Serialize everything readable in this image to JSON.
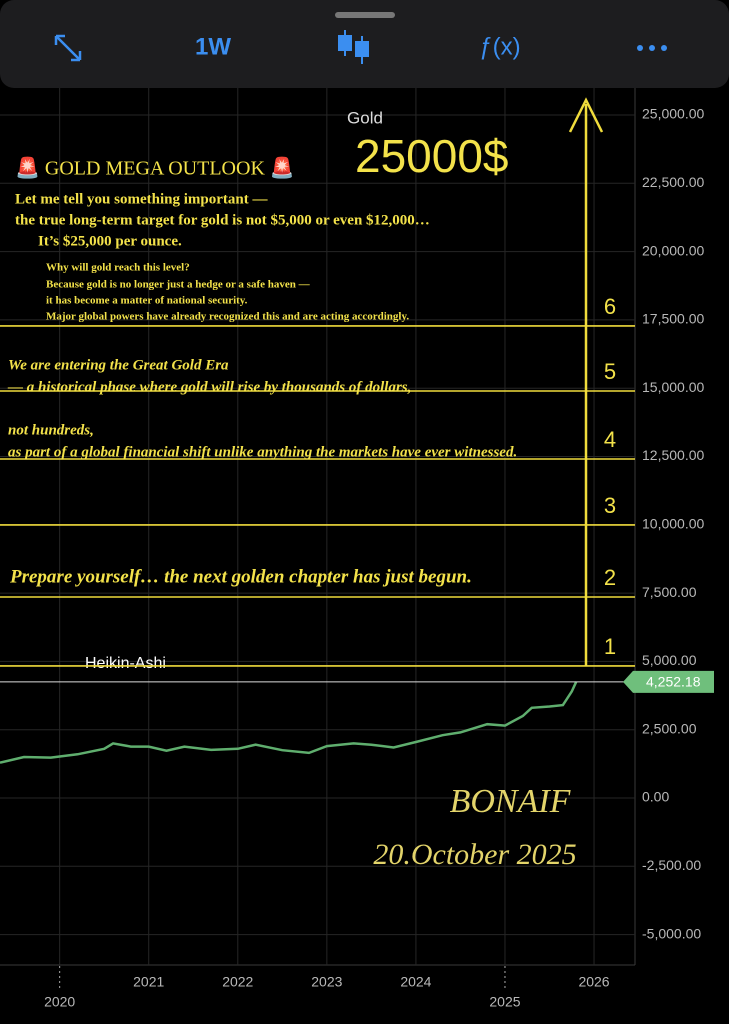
{
  "toolbar": {
    "interval": "1W",
    "function": "ƒ(x)"
  },
  "chart_data": {
    "type": "line",
    "title": "Gold",
    "series_label": "Heikin-Ashi",
    "color": "#5fae6e",
    "x": [
      2019.33,
      2019.6,
      2019.9,
      2020.2,
      2020.5,
      2020.6,
      2020.8,
      2021.0,
      2021.2,
      2021.4,
      2021.7,
      2022.0,
      2022.2,
      2022.5,
      2022.8,
      2023.0,
      2023.3,
      2023.5,
      2023.75,
      2024.0,
      2024.3,
      2024.5,
      2024.8,
      2025.0,
      2025.2,
      2025.3,
      2025.5,
      2025.65,
      2025.75,
      2025.8
    ],
    "values": [
      1290,
      1500,
      1480,
      1600,
      1800,
      2000,
      1880,
      1880,
      1730,
      1880,
      1760,
      1800,
      1950,
      1750,
      1650,
      1900,
      2000,
      1950,
      1850,
      2050,
      2300,
      2400,
      2700,
      2650,
      3000,
      3300,
      3350,
      3400,
      3900,
      4252.18
    ],
    "xlim": [
      2019.33,
      2026.46
    ],
    "xticks": [
      2021,
      2022,
      2023,
      2024,
      2026
    ],
    "xticks_major": [
      2020,
      2025
    ],
    "ylim": [
      -6113,
      25988
    ],
    "yticks": [
      {
        "value": 25000,
        "label": "25,000.00"
      },
      {
        "value": 22500,
        "label": "22,500.00"
      },
      {
        "value": 20000,
        "label": "20,000.00"
      },
      {
        "value": 17500,
        "label": "17,500.00"
      },
      {
        "value": 15000,
        "label": "15,000.00"
      },
      {
        "value": 12500,
        "label": "12,500.00"
      },
      {
        "value": 10000,
        "label": "10,000.00"
      },
      {
        "value": 7500,
        "label": "7,500.00"
      },
      {
        "value": 5000,
        "label": "5,000.00"
      },
      {
        "value": 2500,
        "label": "2,500.00"
      },
      {
        "value": 0,
        "label": "0.00"
      },
      {
        "value": -2500,
        "label": "-2,500.00"
      },
      {
        "value": -5000,
        "label": "-5,000.00"
      }
    ],
    "grid": true,
    "last_price": {
      "value": 4252.18,
      "label": "4,252.18"
    },
    "levels": [
      {
        "value": 4832,
        "label": "1"
      },
      {
        "value": 7357,
        "label": "2"
      },
      {
        "value": 9993,
        "label": "3"
      },
      {
        "value": 12408,
        "label": "4"
      },
      {
        "value": 14897,
        "label": "5"
      },
      {
        "value": 17277,
        "label": "6"
      }
    ],
    "annotations": [
      "🚨 GOLD MEGA OUTLOOK 🚨",
      "25000$",
      "Let me tell you something important —",
      "the true long-term target for gold is not $5,000 or even $12,000…",
      "It’s $25,000 per ounce.",
      "Why will gold reach this level?",
      "Because gold is no longer just a hedge or a safe haven —",
      "it has become a matter of national security.",
      "Major global powers have already recognized this and are acting accordingly.",
      "We are entering the Great Gold Era",
      "— a historical phase where gold will rise by thousands of dollars,",
      "not hundreds,",
      "as part of a global financial shift unlike anything the markets have ever witnessed.",
      "Prepare yourself… the next golden chapter has just begun.",
      "BONAIF",
      "20.October 2025"
    ]
  }
}
